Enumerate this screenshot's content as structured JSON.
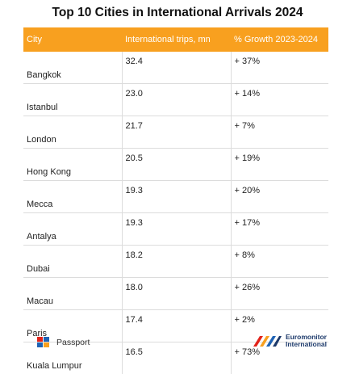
{
  "title": "Top 10 Cities in International Arrivals 2024",
  "table": {
    "headers": [
      "City",
      "International trips, mn",
      "% Growth 2023-2024"
    ],
    "rows": [
      {
        "city": "Bangkok",
        "trips": "32.4",
        "growth": "+ 37%"
      },
      {
        "city": "Istanbul",
        "trips": "23.0",
        "growth": "+ 14%"
      },
      {
        "city": "London",
        "trips": "21.7",
        "growth": "+ 7%"
      },
      {
        "city": "Hong Kong",
        "trips": "20.5",
        "growth": "+ 19%"
      },
      {
        "city": "Mecca",
        "trips": "19.3",
        "growth": "+ 20%"
      },
      {
        "city": "Antalya",
        "trips": "19.3",
        "growth": "+ 17%"
      },
      {
        "city": "Dubai",
        "trips": "18.2",
        "growth": "+ 8%"
      },
      {
        "city": "Macau",
        "trips": "18.0",
        "growth": "+ 26%"
      },
      {
        "city": "Paris",
        "trips": "17.4",
        "growth": "+ 2%"
      },
      {
        "city": "Kuala Lumpur",
        "trips": "16.5",
        "growth": "+ 73%"
      }
    ]
  },
  "footer": {
    "left_logo_text": "Passport",
    "right_logo_line1": "Euromonitor",
    "right_logo_line2": "International"
  },
  "colors": {
    "header_bg": "#f8a01f",
    "header_text": "#ffffff",
    "grid": "#dcdcdc"
  },
  "icons": [
    "passport-logo-icon",
    "euromonitor-logo-icon"
  ]
}
